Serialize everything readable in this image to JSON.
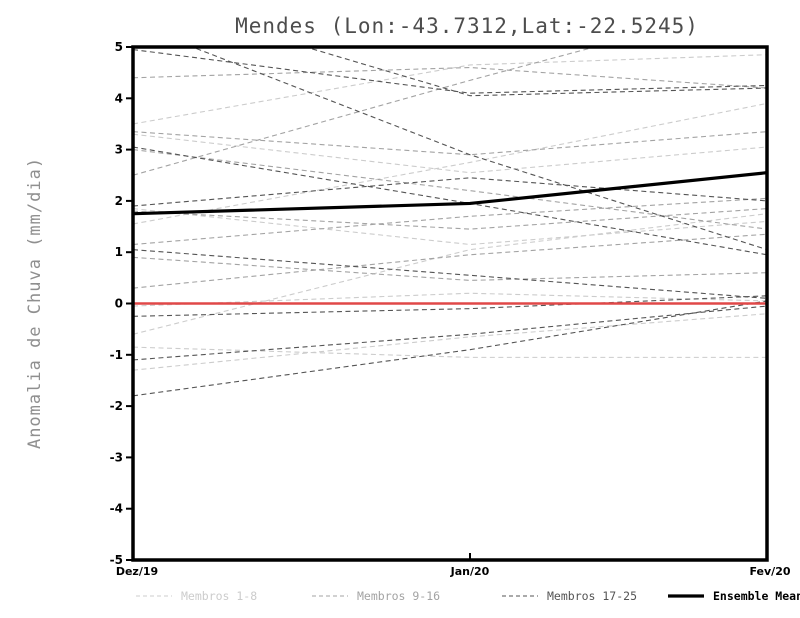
{
  "title": "Mendes (Lon:-43.7312,Lat:-22.5245)",
  "axes": {
    "y_label": "Anomalia de Chuva (mm/dia)",
    "x_tick_labels": [
      "Dez/19",
      "Jan/20",
      "Fev/20"
    ],
    "y_tick_labels": [
      "5",
      "4",
      "3",
      "2",
      "1",
      "0",
      "-1",
      "-2",
      "-3",
      "-4",
      "-5"
    ]
  },
  "colors": {
    "frame": "#000000",
    "title": "#4d4d4d",
    "y_axis_label": "#8f8f8f",
    "zero_line": "#e04848",
    "ensemble_mean": "#000000",
    "members_1_8": "#cccccc",
    "members_9_16": "#a3a3a3",
    "members_17_25": "#545454"
  },
  "chart_data": {
    "type": "line",
    "title": "Mendes (Lon:-43.7312,Lat:-22.5245)",
    "xlabel": "",
    "ylabel": "Anomalia de Chuva (mm/dia)",
    "x_categories": [
      "Dez/19",
      "Jan/20",
      "Fev/20"
    ],
    "ylim": [
      -5,
      5
    ],
    "y_ticks": [
      5,
      4,
      3,
      2,
      1,
      0,
      -1,
      -2,
      -3,
      -4,
      -5
    ],
    "grid": false,
    "legend_position": "bottom",
    "zero_line": {
      "name": "zero-anomaly-line",
      "color": "#e04848",
      "style": "solid",
      "width": 2.5,
      "values": [
        0,
        0,
        0
      ]
    },
    "ensemble_mean": {
      "label": "Ensemble Mean",
      "color": "#000000",
      "style": "solid",
      "width": 3.2,
      "values": [
        1.75,
        1.95,
        2.55
      ]
    },
    "member_groups": [
      {
        "label": "Membros 1-8",
        "color": "#cccccc",
        "style": "dashed",
        "members": [
          [
            3.5,
            4.65,
            4.85
          ],
          [
            3.3,
            2.55,
            3.05
          ],
          [
            1.85,
            1.15,
            1.6
          ],
          [
            1.55,
            2.75,
            3.9
          ],
          [
            -0.05,
            0.2,
            0.05
          ],
          [
            -0.6,
            1.05,
            1.75
          ],
          [
            -0.85,
            -1.05,
            -1.05
          ],
          [
            -1.3,
            -0.65,
            -0.2
          ]
        ]
      },
      {
        "label": "Membros 9-16",
        "color": "#a3a3a3",
        "style": "dashed",
        "members": [
          [
            4.4,
            4.6,
            4.2
          ],
          [
            3.35,
            2.9,
            3.35
          ],
          [
            3.0,
            2.2,
            1.45
          ],
          [
            2.5,
            4.35,
            5.9
          ],
          [
            1.15,
            1.7,
            2.05
          ],
          [
            0.9,
            0.45,
            0.6
          ],
          [
            1.8,
            1.45,
            1.85
          ],
          [
            0.3,
            0.95,
            1.35
          ]
        ]
      },
      {
        "label": "Membros 17-25",
        "color": "#545454",
        "style": "dashed",
        "members": [
          [
            5.45,
            2.9,
            1.05
          ],
          [
            6.0,
            4.05,
            4.2
          ],
          [
            4.95,
            4.1,
            4.25
          ],
          [
            3.05,
            1.95,
            0.95
          ],
          [
            1.9,
            2.45,
            2.0
          ],
          [
            1.05,
            0.55,
            0.1
          ],
          [
            -0.25,
            -0.1,
            0.15
          ],
          [
            -1.1,
            -0.6,
            -0.05
          ],
          [
            -1.8,
            -0.9,
            0.05
          ]
        ]
      }
    ]
  }
}
